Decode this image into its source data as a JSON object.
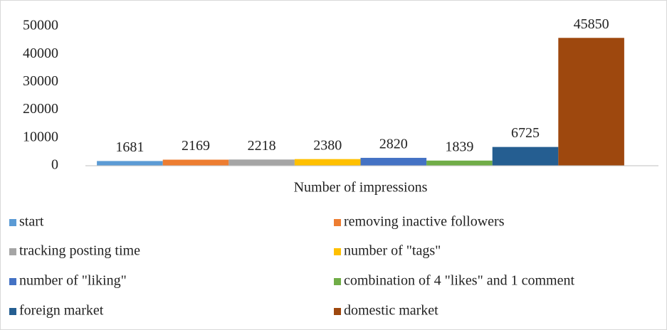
{
  "chart_data": {
    "type": "bar",
    "categories": [
      "Number of impressions"
    ],
    "series": [
      {
        "name": "start",
        "color": "#5b9bd5",
        "values": [
          1681
        ]
      },
      {
        "name": "removing inactive followers",
        "color": "#ed7d31",
        "values": [
          2169
        ]
      },
      {
        "name": "tracking posting time",
        "color": "#a5a5a5",
        "values": [
          2218
        ]
      },
      {
        "name": "number of \"tags\"",
        "color": "#ffc000",
        "values": [
          2380
        ]
      },
      {
        "name": "number of \"liking\"",
        "color": "#4472c4",
        "values": [
          2820
        ]
      },
      {
        "name": "combination of 4 \"likes\" and 1 comment",
        "color": "#70ad47",
        "values": [
          1839
        ]
      },
      {
        "name": "foreign market",
        "color": "#255e91",
        "values": [
          6725
        ]
      },
      {
        "name": "domestic market",
        "color": "#9e480e",
        "values": [
          45850
        ]
      }
    ],
    "ylim": [
      0,
      50000
    ],
    "yticks": [
      0,
      10000,
      20000,
      30000,
      40000,
      50000
    ],
    "grid": false,
    "legend": "bottom"
  }
}
